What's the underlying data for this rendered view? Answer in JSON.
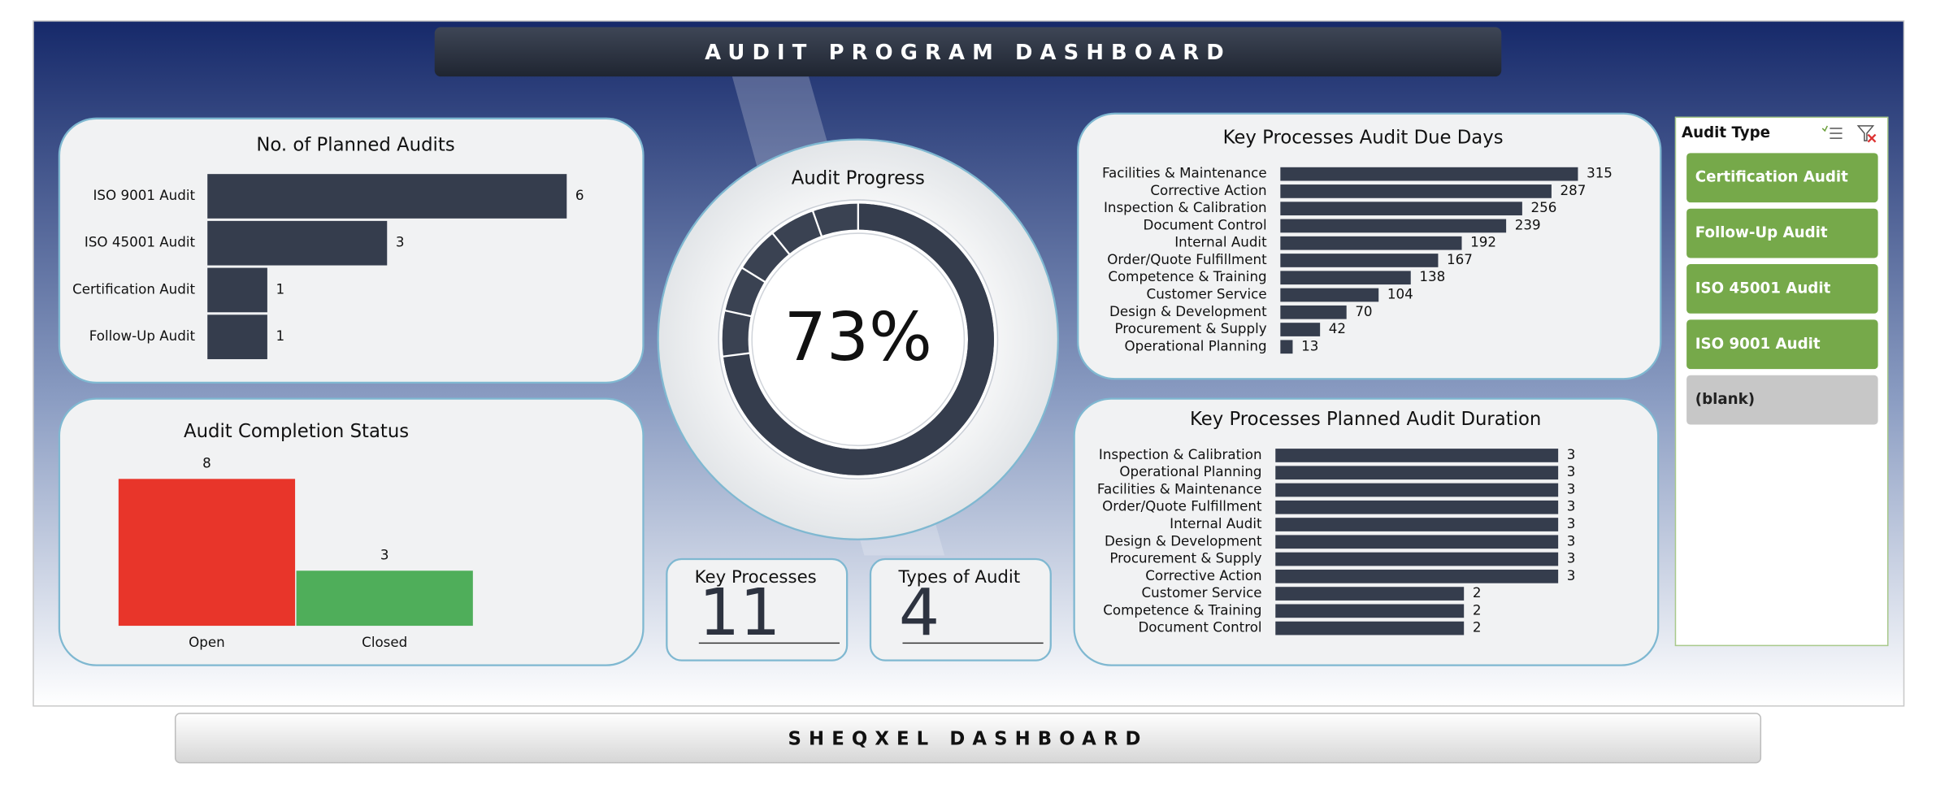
{
  "header": {
    "title": "AUDIT PROGRAM DASHBOARD"
  },
  "footer": {
    "title": "SHEQXEL DASHBOARD"
  },
  "kpis": [
    {
      "label": "Key Processes",
      "value": 11
    },
    {
      "label": "Types of Audit",
      "value": 4
    }
  ],
  "slicer": {
    "title": "Audit Type",
    "items": [
      "Certification Audit",
      "Follow-Up Audit",
      "ISO 45001 Audit",
      "ISO 9001 Audit",
      "(blank)"
    ]
  },
  "chart_data": [
    {
      "type": "barh",
      "title": "No. of Planned Audits",
      "color": "#353d4d",
      "categories": [
        "ISO 9001 Audit",
        "ISO 45001 Audit",
        "Certification Audit",
        "Follow-Up Audit"
      ],
      "values": [
        6,
        3,
        1,
        1
      ]
    },
    {
      "type": "bar",
      "title": "Audit Completion Status",
      "categories": [
        "Open",
        "Closed"
      ],
      "values": [
        8,
        3
      ],
      "colors": [
        "#e8352a",
        "#4fae5a"
      ]
    },
    {
      "type": "donut",
      "title": "Audit Progress",
      "values": [
        73
      ],
      "value_labels": [
        "73%"
      ],
      "color": "#353d4d"
    },
    {
      "type": "barh",
      "title": "Key Processes Audit Due Days",
      "color": "#353d4d",
      "categories": [
        "Facilities & Maintenance",
        "Corrective Action",
        "Inspection & Calibration",
        "Document Control",
        "Internal Audit",
        "Order/Quote Fulfillment",
        "Competence & Training",
        "Customer Service",
        "Design & Development",
        "Procurement & Supply",
        "Operational Planning"
      ],
      "values": [
        315,
        287,
        256,
        239,
        192,
        167,
        138,
        104,
        70,
        42,
        13
      ]
    },
    {
      "type": "barh",
      "title": "Key Processes Planned Audit Duration",
      "color": "#353d4d",
      "categories": [
        "Inspection & Calibration",
        "Operational Planning",
        "Facilities & Maintenance",
        "Order/Quote Fulfillment",
        "Internal Audit",
        "Design & Development",
        "Procurement & Supply",
        "Corrective Action",
        "Customer Service",
        "Competence & Training",
        "Document Control"
      ],
      "values": [
        3,
        3,
        3,
        3,
        3,
        3,
        3,
        3,
        2,
        2,
        2
      ]
    }
  ]
}
